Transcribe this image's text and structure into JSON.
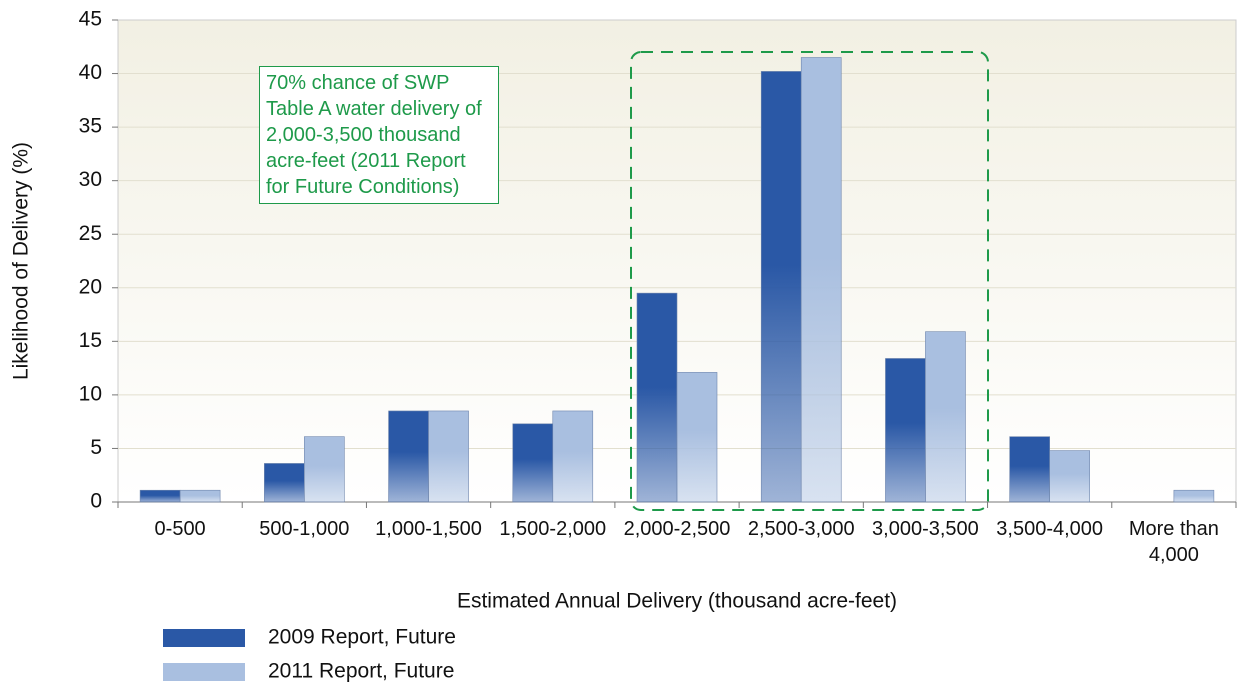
{
  "chart_data": {
    "type": "bar",
    "y_label": "Likelihood of Delivery (%)",
    "x_label": "Estimated Annual Delivery (thousand acre-feet)",
    "annotation": "70% chance of SWP Table A water delivery of 2,000-3,500 thousand acre-feet (2011 Report for Future Conditions)",
    "categories": [
      "0-500",
      "500-1,000",
      "1,000-1,500",
      "1,500-2,000",
      "2,000-2,500",
      "2,500-3,000",
      "3,000-3,500",
      "3,500-4,000",
      "More than 4,000"
    ],
    "series": [
      {
        "name": "2009 Report, Future",
        "color": "#2a58a6",
        "values": [
          1.1,
          3.6,
          8.5,
          7.3,
          19.5,
          40.2,
          13.4,
          6.1,
          0
        ]
      },
      {
        "name": "2011 Report, Future",
        "color": "#a9bfe0",
        "values": [
          1.1,
          6.1,
          8.5,
          8.5,
          12.1,
          41.5,
          15.9,
          4.8,
          1.1
        ]
      }
    ],
    "ylim": [
      0,
      45
    ],
    "yticks": [
      0,
      5,
      10,
      15,
      20,
      25,
      30,
      35,
      40,
      45
    ],
    "grid": true
  }
}
